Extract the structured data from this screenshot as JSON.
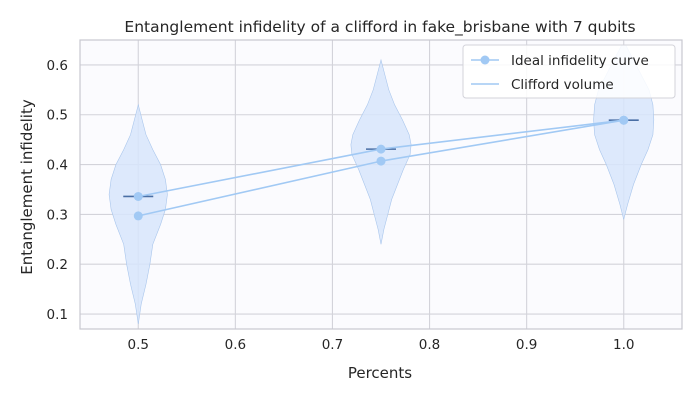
{
  "chart_data": {
    "type": "violin",
    "title": "Entanglement infidelity of a clifford in fake_brisbane with 7 qubits",
    "xlabel": "Percents",
    "ylabel": "Entanglement infidelity",
    "xlim": [
      0.44,
      1.06
    ],
    "ylim": [
      0.07,
      0.65
    ],
    "xticks": [
      0.5,
      0.6,
      0.7,
      0.8,
      0.9,
      1.0
    ],
    "xtick_labels": [
      "0.5",
      "0.6",
      "0.7",
      "0.8",
      "0.9",
      "1.0"
    ],
    "yticks": [
      0.1,
      0.2,
      0.3,
      0.4,
      0.5,
      0.6
    ],
    "ytick_labels": [
      "0.1",
      "0.2",
      "0.3",
      "0.4",
      "0.5",
      "0.6"
    ],
    "grid": true,
    "legend_position": "top-right",
    "violins": [
      {
        "x": 0.5,
        "mean": 0.336,
        "profile": [
          [
            0.08,
            0.0
          ],
          [
            0.12,
            0.003
          ],
          [
            0.16,
            0.008
          ],
          [
            0.2,
            0.012
          ],
          [
            0.24,
            0.015
          ],
          [
            0.28,
            0.023
          ],
          [
            0.31,
            0.028
          ],
          [
            0.34,
            0.03
          ],
          [
            0.37,
            0.028
          ],
          [
            0.4,
            0.023
          ],
          [
            0.43,
            0.015
          ],
          [
            0.46,
            0.008
          ],
          [
            0.49,
            0.004
          ],
          [
            0.52,
            0.0
          ]
        ]
      },
      {
        "x": 0.75,
        "mean": 0.431,
        "profile": [
          [
            0.24,
            0.0
          ],
          [
            0.27,
            0.003
          ],
          [
            0.3,
            0.007
          ],
          [
            0.33,
            0.011
          ],
          [
            0.36,
            0.017
          ],
          [
            0.39,
            0.023
          ],
          [
            0.42,
            0.03
          ],
          [
            0.44,
            0.031
          ],
          [
            0.46,
            0.029
          ],
          [
            0.49,
            0.022
          ],
          [
            0.52,
            0.014
          ],
          [
            0.55,
            0.008
          ],
          [
            0.58,
            0.004
          ],
          [
            0.61,
            0.0
          ]
        ]
      },
      {
        "x": 1.0,
        "mean": 0.489,
        "profile": [
          [
            0.29,
            0.0
          ],
          [
            0.32,
            0.004
          ],
          [
            0.36,
            0.01
          ],
          [
            0.4,
            0.018
          ],
          [
            0.43,
            0.025
          ],
          [
            0.46,
            0.03
          ],
          [
            0.49,
            0.031
          ],
          [
            0.52,
            0.03
          ],
          [
            0.55,
            0.026
          ],
          [
            0.58,
            0.018
          ],
          [
            0.61,
            0.01
          ],
          [
            0.64,
            0.002
          ]
        ]
      }
    ],
    "series": [
      {
        "name": "Ideal infidelity curve",
        "marker": "circle",
        "x": [
          0.5,
          0.75,
          1.0
        ],
        "y": [
          0.336,
          0.431,
          0.489
        ]
      },
      {
        "name": "Clifford volume",
        "marker": "circle",
        "x": [
          0.5,
          0.75,
          1.0
        ],
        "y": [
          0.297,
          0.407,
          0.489
        ]
      }
    ],
    "colors": {
      "background": "#fbfbfe",
      "grid": "#d3d3da",
      "axis": "#c8c8d0",
      "violin_fill": "#d7e5fb",
      "violin_edge": "#a9c6ec",
      "median_bar": "#4a6fa5",
      "line": "#a1c9f4",
      "marker": "#a1c9f4"
    }
  }
}
